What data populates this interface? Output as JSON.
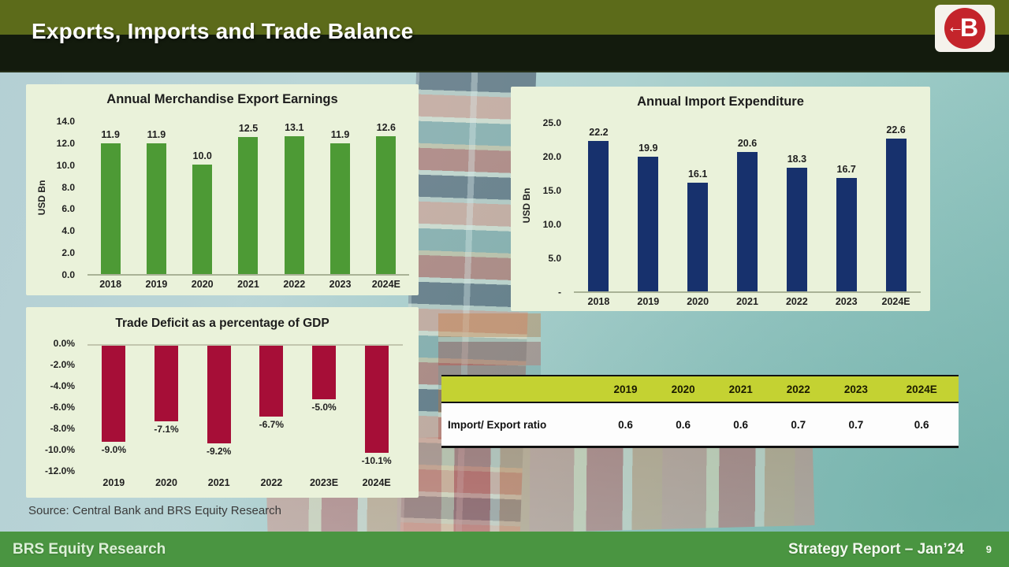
{
  "header": {
    "title": "Exports, Imports and Trade Balance",
    "logo_letter": "B"
  },
  "source_note": "Source: Central Bank and BRS Equity Research",
  "footer": {
    "left": "BRS Equity Research",
    "right": "Strategy Report – Jan’24",
    "page": "9"
  },
  "colors": {
    "export_bar": "#4d9a35",
    "import_bar": "#17316d",
    "deficit_bar": "#a60e37",
    "panel_bg": "#eaf2da",
    "table_header_bg": "#c4d232",
    "footer_bg": "#4a9541",
    "header_olive": "#5c6b1a",
    "header_dark": "#131b0d"
  },
  "chart_data": [
    {
      "type": "bar",
      "title": "Annual Merchandise Export Earnings",
      "ylabel": "USD Bn",
      "categories": [
        "2018",
        "2019",
        "2020",
        "2021",
        "2022",
        "2023",
        "2024E"
      ],
      "values": [
        11.9,
        11.9,
        10.0,
        12.5,
        13.1,
        11.9,
        12.6
      ],
      "value_labels": [
        "11.9",
        "11.9",
        "10.0",
        "12.5",
        "13.1",
        "11.9",
        "12.6"
      ],
      "ylim": [
        0,
        14
      ],
      "yticks": [
        "14.0",
        "12.0",
        "10.0",
        "8.0",
        "6.0",
        "4.0",
        "2.0",
        "0.0"
      ],
      "legend": "none",
      "grid": "off"
    },
    {
      "type": "bar",
      "title": "Annual Import Expenditure",
      "ylabel": "USD Bn",
      "categories": [
        "2018",
        "2019",
        "2020",
        "2021",
        "2022",
        "2023",
        "2024E"
      ],
      "values": [
        22.2,
        19.9,
        16.1,
        20.6,
        18.3,
        16.7,
        22.6
      ],
      "value_labels": [
        "22.2",
        "19.9",
        "16.1",
        "20.6",
        "18.3",
        "16.7",
        "22.6"
      ],
      "ylim": [
        0,
        25
      ],
      "yticks": [
        "25.0",
        "20.0",
        "15.0",
        "10.0",
        "5.0",
        "-"
      ],
      "legend": "none",
      "grid": "off"
    },
    {
      "type": "bar",
      "title": "Trade Deficit as a percentage of GDP",
      "ylabel": "",
      "categories": [
        "2019",
        "2020",
        "2021",
        "2022",
        "2023E",
        "2024E"
      ],
      "values": [
        -9.0,
        -7.1,
        -9.2,
        -6.7,
        -5.0,
        -10.1
      ],
      "value_labels": [
        "-9.0%",
        "-7.1%",
        "-9.2%",
        "-6.7%",
        "-5.0%",
        "-10.1%"
      ],
      "ylim": [
        -12,
        0
      ],
      "yticks": [
        "0.0%",
        "-2.0%",
        "-4.0%",
        "-6.0%",
        "-8.0%",
        "-10.0%",
        "-12.0%"
      ],
      "legend": "none",
      "grid": "off"
    },
    {
      "type": "table",
      "columns": [
        "",
        "2019",
        "2020",
        "2021",
        "2022",
        "2023",
        "2024E"
      ],
      "rows": [
        [
          "Import/ Export ratio",
          "0.6",
          "0.6",
          "0.6",
          "0.7",
          "0.7",
          "0.6"
        ]
      ]
    }
  ]
}
